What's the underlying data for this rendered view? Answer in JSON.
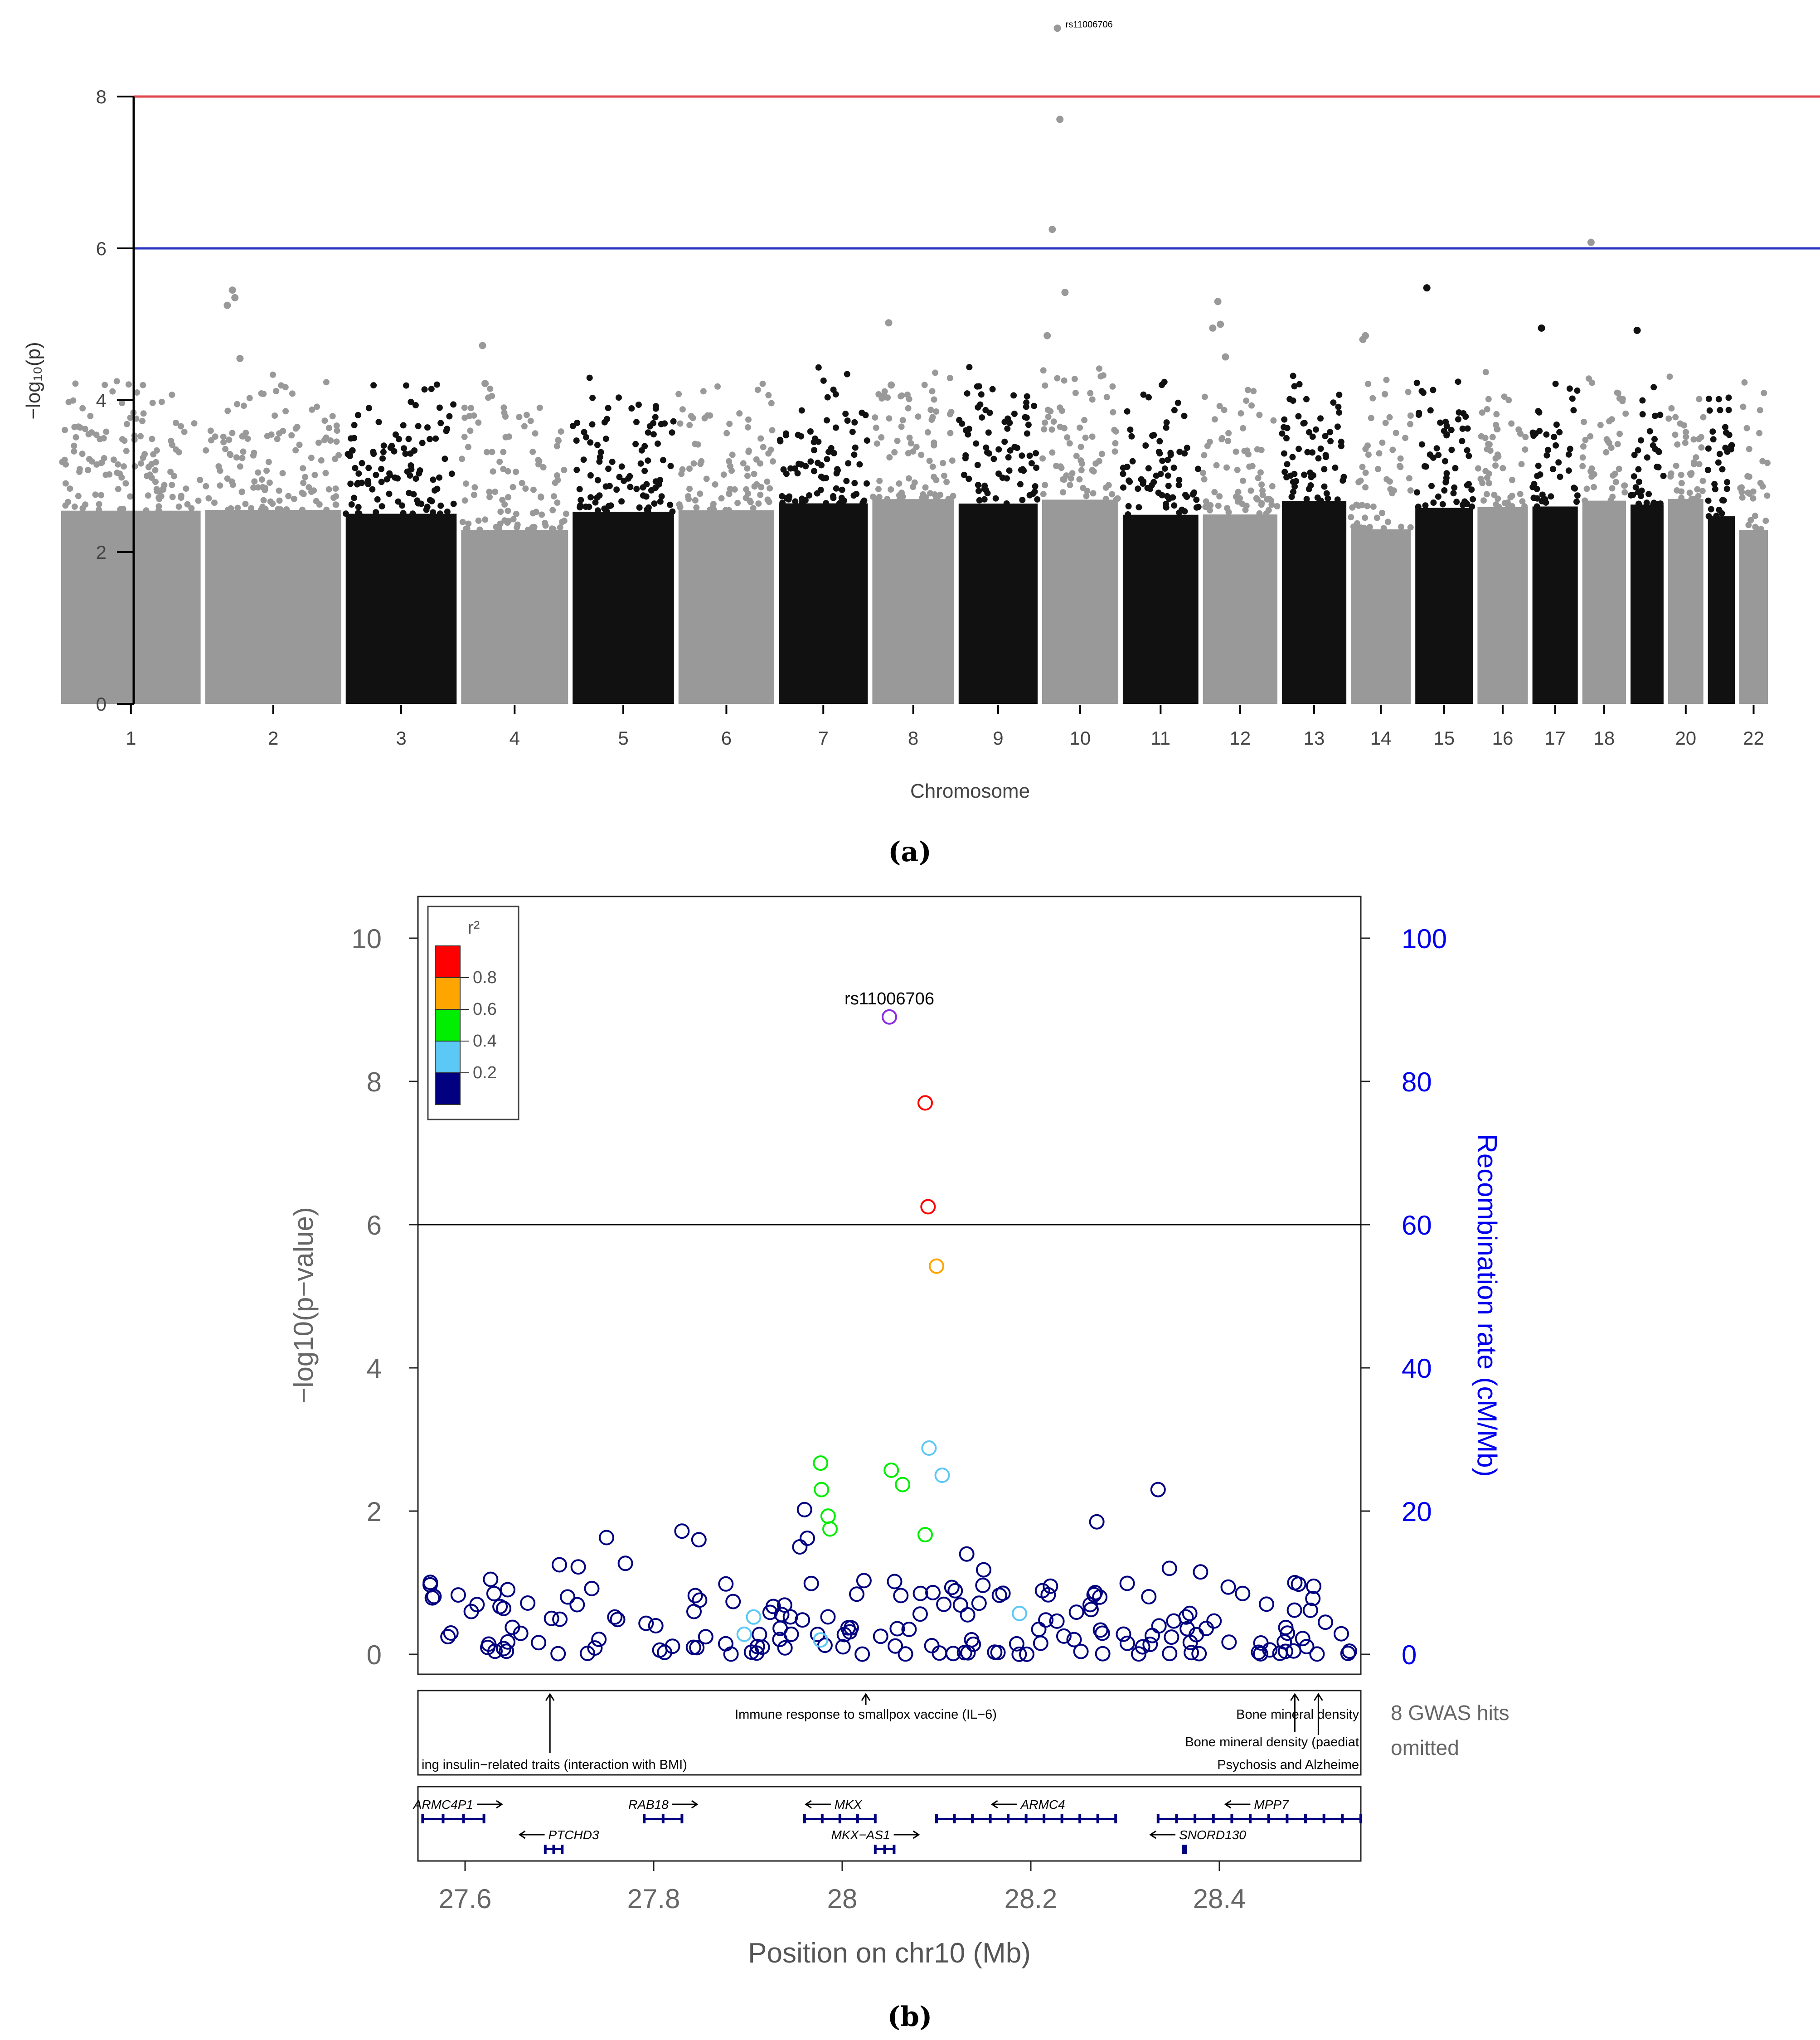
{
  "panel_labels": {
    "a": "(a)",
    "b": "(b)"
  },
  "chart_data": [
    {
      "type": "scatter",
      "subtype": "manhattan",
      "title": "",
      "xlabel": "Chromosome",
      "ylabel": "−log₁₀(p)",
      "ylim": [
        0,
        8
      ],
      "yticks": [
        0,
        2,
        4,
        6,
        8
      ],
      "chromosome_ticks": [
        "1",
        "2",
        "3",
        "4",
        "5",
        "6",
        "7",
        "8",
        "9",
        "10",
        "11",
        "12",
        "13",
        "14",
        "15",
        "16",
        "17",
        "18",
        "20",
        "22"
      ],
      "chromosome_lengths": [
        249,
        243,
        198,
        191,
        181,
        171,
        159,
        146,
        141,
        136,
        135,
        133,
        115,
        107,
        103,
        90,
        81,
        78,
        59,
        63,
        48,
        51
      ],
      "chromosome_shades": [
        "#999999",
        "#999999",
        "#111111",
        "#999999",
        "#111111",
        "#999999",
        "#111111",
        "#999999",
        "#111111",
        "#999999",
        "#111111",
        "#999999",
        "#111111",
        "#999999",
        "#111111",
        "#999999",
        "#111111",
        "#999999",
        "#111111",
        "#999999",
        "#111111",
        "#999999"
      ],
      "thresholds": [
        {
          "value": 8,
          "color": "#e0474c"
        },
        {
          "value": 6,
          "color": "#2a34c2"
        }
      ],
      "top_hit": {
        "label": "rs11006706",
        "chromosome": 10,
        "value": 8.9
      },
      "peaks": [
        {
          "chromosome": 10,
          "values": [
            8.9,
            7.7,
            6.25,
            5.42,
            4.85
          ]
        },
        {
          "chromosome": 18,
          "values": [
            6.08
          ]
        },
        {
          "chromosome": 2,
          "values": [
            5.45,
            5.35,
            5.25,
            4.55
          ]
        },
        {
          "chromosome": 15,
          "values": [
            5.48
          ]
        },
        {
          "chromosome": 12,
          "values": [
            5.3,
            5.0,
            4.95,
            4.57
          ]
        },
        {
          "chromosome": 8,
          "values": [
            5.02,
            4.2,
            4.05
          ]
        },
        {
          "chromosome": 19,
          "values": [
            4.92
          ]
        },
        {
          "chromosome": 17,
          "values": [
            4.95
          ]
        },
        {
          "chromosome": 14,
          "values": [
            4.8,
            4.85
          ]
        },
        {
          "chromosome": 4,
          "values": [
            4.72,
            4.22
          ]
        }
      ],
      "colors": {
        "gray": "#999999",
        "black": "#111111"
      }
    },
    {
      "type": "scatter",
      "subtype": "regional_association",
      "title": "",
      "xlabel": "Position on chr10 (Mb)",
      "ylabel": "−log10(p−value)",
      "ylabel_right": "Recombination rate (cM/Mb)",
      "xlim": [
        27.55,
        28.55
      ],
      "ylim": [
        0,
        10.5
      ],
      "xticks": [
        27.6,
        27.8,
        28.0,
        28.2,
        28.4
      ],
      "xtick_labels": [
        "27.6",
        "27.8",
        "28",
        "28.2",
        "28.4"
      ],
      "yticks": [
        0,
        2,
        4,
        6,
        8,
        10
      ],
      "yticks_right": [
        0,
        20,
        40,
        60,
        80,
        100
      ],
      "threshold": 6,
      "lead_snp": {
        "label": "rs11006706",
        "x": 28.05,
        "y": 8.9,
        "color": "#8a2be2"
      },
      "legend": {
        "title": "r²",
        "entries": [
          {
            "label": "0.8",
            "color": "#ff0000"
          },
          {
            "label": "0.6",
            "color": "#ffa500"
          },
          {
            "label": "0.4",
            "color": "#00ee00"
          },
          {
            "label": "0.2",
            "color": "#5bc8f5"
          },
          {
            "label": "",
            "color": "#000080"
          }
        ]
      },
      "points": [
        {
          "x": 28.088,
          "y": 7.7,
          "r2": 0.9
        },
        {
          "x": 28.091,
          "y": 6.25,
          "r2": 0.9
        },
        {
          "x": 28.1,
          "y": 5.42,
          "r2": 0.7
        },
        {
          "x": 27.977,
          "y": 2.67,
          "r2": 0.5
        },
        {
          "x": 27.978,
          "y": 2.3,
          "r2": 0.5
        },
        {
          "x": 27.985,
          "y": 1.93,
          "r2": 0.5
        },
        {
          "x": 27.987,
          "y": 1.75,
          "r2": 0.5
        },
        {
          "x": 28.052,
          "y": 2.57,
          "r2": 0.5
        },
        {
          "x": 28.064,
          "y": 2.37,
          "r2": 0.5
        },
        {
          "x": 28.088,
          "y": 1.67,
          "r2": 0.5
        },
        {
          "x": 28.092,
          "y": 2.88,
          "r2": 0.3
        },
        {
          "x": 28.106,
          "y": 2.5,
          "r2": 0.3
        },
        {
          "x": 27.977,
          "y": 0.2,
          "r2": 0.3
        },
        {
          "x": 27.906,
          "y": 0.52,
          "r2": 0.3
        },
        {
          "x": 27.896,
          "y": 0.28,
          "r2": 0.3
        },
        {
          "x": 28.188,
          "y": 0.57,
          "r2": 0.3
        },
        {
          "x": 27.96,
          "y": 2.02,
          "r2": 0.1
        },
        {
          "x": 27.955,
          "y": 1.5,
          "r2": 0.1
        },
        {
          "x": 27.963,
          "y": 1.62,
          "r2": 0.1
        },
        {
          "x": 27.75,
          "y": 1.63,
          "r2": 0.1
        },
        {
          "x": 27.83,
          "y": 1.72,
          "r2": 0.1
        },
        {
          "x": 27.848,
          "y": 1.6,
          "r2": 0.1
        },
        {
          "x": 28.27,
          "y": 1.85,
          "r2": 0.1
        },
        {
          "x": 28.335,
          "y": 2.3,
          "r2": 0.1
        },
        {
          "x": 28.132,
          "y": 1.4,
          "r2": 0.1
        },
        {
          "x": 28.15,
          "y": 1.18,
          "r2": 0.1
        },
        {
          "x": 28.347,
          "y": 1.2,
          "r2": 0.1
        },
        {
          "x": 28.38,
          "y": 1.15,
          "r2": 0.1
        },
        {
          "x": 27.7,
          "y": 1.25,
          "r2": 0.1
        },
        {
          "x": 27.72,
          "y": 1.22,
          "r2": 0.1
        },
        {
          "x": 27.77,
          "y": 1.27,
          "r2": 0.1
        },
        {
          "x": 28.083,
          "y": 0.85,
          "r2": 0.1
        },
        {
          "x": 28.095,
          "y": 0.12,
          "r2": 0.1
        },
        {
          "x": 28.45,
          "y": 0.7,
          "r2": 0.1
        },
        {
          "x": 28.5,
          "y": 0.95,
          "r2": 0.1
        },
        {
          "x": 28.48,
          "y": 1.0,
          "r2": 0.1
        }
      ],
      "gwas_hits": [
        {
          "x": 27.69,
          "label": "ing insulin−related traits (interaction with BMI)"
        },
        {
          "x": 28.025,
          "label": "Immune response to smallpox vaccine (IL−6)"
        },
        {
          "x": 28.48,
          "label": "Bone mineral density"
        },
        {
          "x": 28.505,
          "label": "Bone mineral density (paediat"
        },
        {
          "x": 28.505,
          "label": "Psychosis and Alzheime"
        }
      ],
      "gwas_omitted": [
        "8 GWAS hits",
        "omitted"
      ],
      "genes": [
        {
          "name": "ARMC4P1",
          "start": 27.555,
          "end": 27.62,
          "row": 0,
          "strand": "+"
        },
        {
          "name": "PTCHD3",
          "start": 27.685,
          "end": 27.703,
          "row": 1,
          "strand": "-"
        },
        {
          "name": "RAB18",
          "start": 27.79,
          "end": 27.83,
          "row": 0,
          "strand": "+"
        },
        {
          "name": "MKX",
          "start": 27.96,
          "end": 28.035,
          "row": 0,
          "strand": "-"
        },
        {
          "name": "MKX−AS1",
          "start": 28.035,
          "end": 28.055,
          "row": 1,
          "strand": "+"
        },
        {
          "name": "ARMC4",
          "start": 28.1,
          "end": 28.29,
          "row": 0,
          "strand": "-"
        },
        {
          "name": "SNORD130",
          "start": 28.362,
          "end": 28.364,
          "row": 1,
          "strand": "-"
        },
        {
          "name": "MPP7",
          "start": 28.335,
          "end": 28.55,
          "row": 0,
          "strand": "-"
        }
      ],
      "colors": {
        "recombination_axis": "#0000ee",
        "ld_default": "#000080"
      }
    }
  ]
}
